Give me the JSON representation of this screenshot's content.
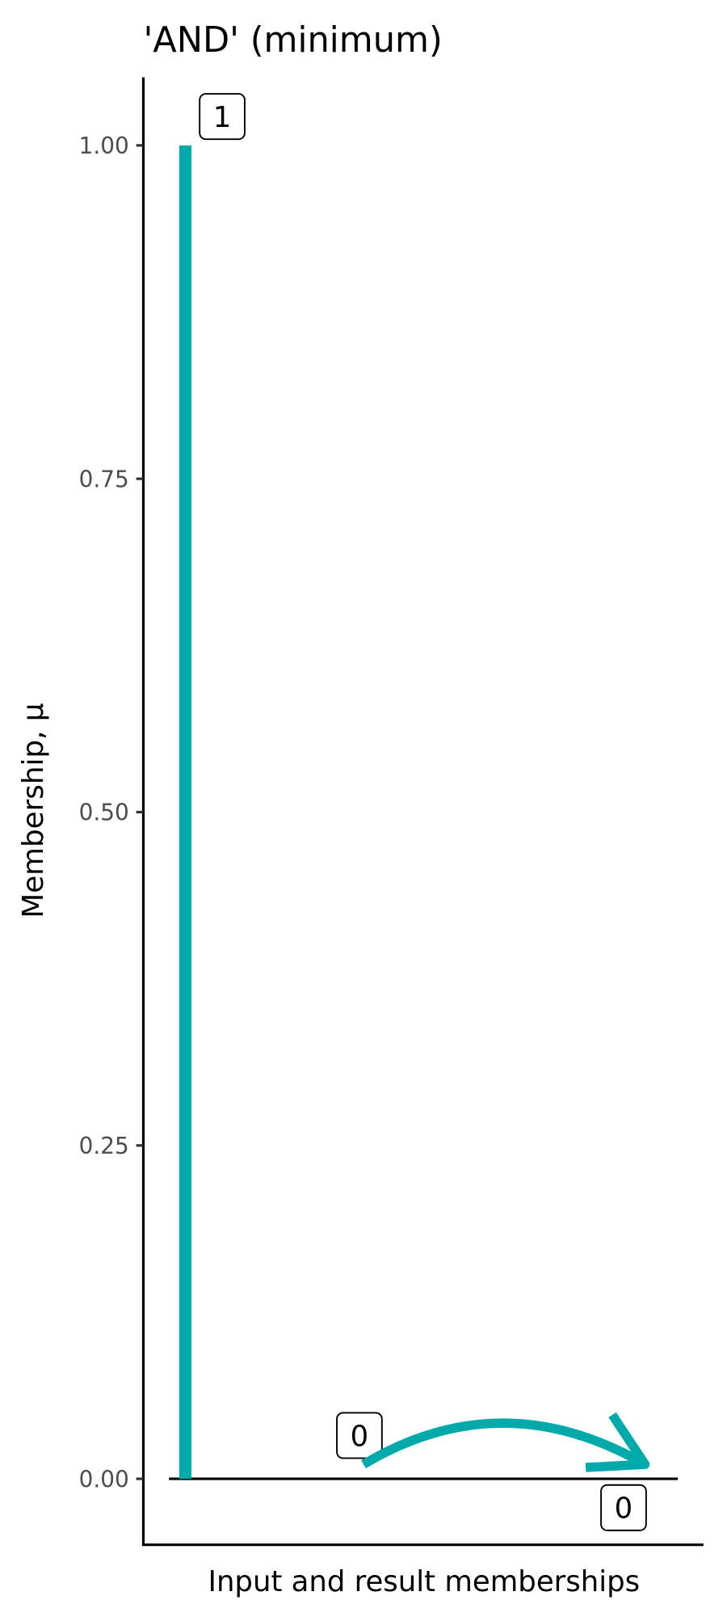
{
  "chart_data": {
    "type": "bar",
    "title": "'AND' (minimum)",
    "xlabel": "Input and result memberships",
    "ylabel": "Membership, μ",
    "ylim": [
      -0.05,
      1.05
    ],
    "yticks": [
      "0.00",
      "0.25",
      "0.50",
      "0.75",
      "1.00"
    ],
    "ytick_values": [
      0,
      0.25,
      0.5,
      0.75,
      1
    ],
    "grid": false,
    "color": "#00AAAA",
    "points": [
      {
        "role": "input",
        "value": 1,
        "label": "1"
      },
      {
        "role": "input",
        "value": 0,
        "label": "0"
      },
      {
        "role": "result",
        "value": 0,
        "label": "0"
      }
    ],
    "annotation": "curved arrow from second input to result"
  }
}
